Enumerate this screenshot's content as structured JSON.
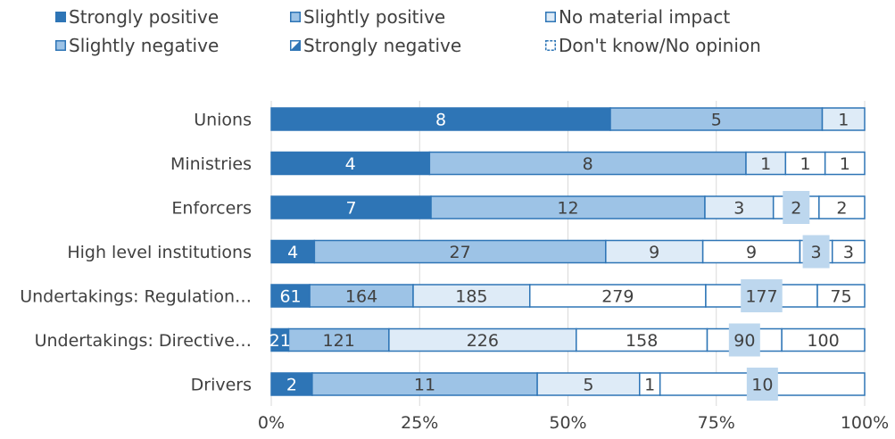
{
  "chart_data": {
    "type": "bar",
    "orientation": "horizontal",
    "stacked": "percent",
    "title": "",
    "xlabel": "",
    "ylabel": "",
    "xlim": [
      0,
      100
    ],
    "x_ticks": [
      "0%",
      "25%",
      "50%",
      "75%",
      "100%"
    ],
    "grid": "vertical",
    "legend_position": "top",
    "categories": [
      "Unions",
      "Ministries",
      "Enforcers",
      "High level institutions",
      "Undertakings: Regulation…",
      "Undertakings: Directive…",
      "Drivers"
    ],
    "series": [
      {
        "name": "Strongly positive",
        "color": "#2e75b6",
        "values": [
          8,
          4,
          7,
          4,
          61,
          21,
          2
        ]
      },
      {
        "name": "Slightly positive",
        "color": "#9dc3e6",
        "values": [
          5,
          8,
          12,
          27,
          164,
          121,
          11
        ]
      },
      {
        "name": "No material impact",
        "color": "#deebf7",
        "values": [
          1,
          1,
          3,
          9,
          185,
          226,
          5
        ]
      },
      {
        "name": "Slightly negative",
        "color": "#ffffff",
        "values": [
          0,
          1,
          0,
          9,
          279,
          158,
          1
        ]
      },
      {
        "name": "Strongly negative",
        "color": "#ffffff",
        "values": [
          0,
          0,
          2,
          3,
          177,
          90,
          10
        ]
      },
      {
        "name": "Don't know/No opinion",
        "color": "#ffffff",
        "values": [
          0,
          1,
          2,
          3,
          75,
          100,
          0
        ]
      }
    ],
    "label_box_color": "#bdd7ee",
    "outline_color": "#2e75b6",
    "legend_swatch_styles": [
      "solid",
      "light-border",
      "lighter-border",
      "light-border",
      "half",
      "dashed"
    ]
  }
}
